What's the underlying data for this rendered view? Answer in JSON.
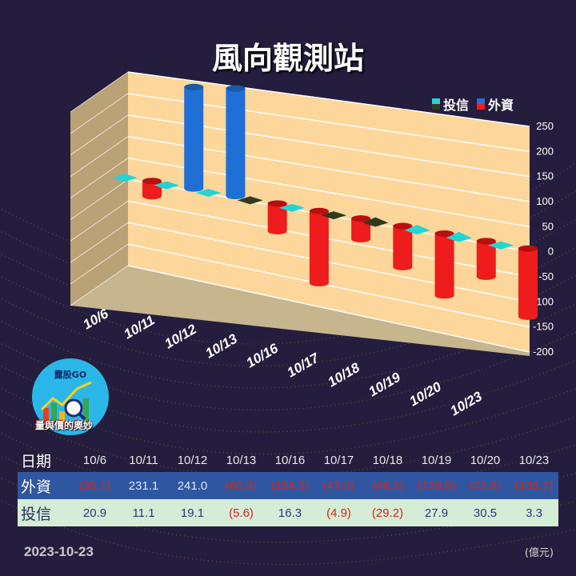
{
  "title": "風向觀測站",
  "legend": {
    "trust": "投信",
    "foreign": "外資"
  },
  "colors": {
    "trust": "#22d5d5",
    "foreign": "#1f6fd6",
    "negative": "#ee1c1c",
    "trust_negative": "#2e3b1f",
    "panel": "#fcd69a"
  },
  "logo": {
    "text": "露股GO",
    "subtitle": "量與價的奧妙"
  },
  "table": {
    "date_header": "日期",
    "foreign_header": "外資",
    "trust_header": "投信",
    "dates": [
      "10/6",
      "10/11",
      "10/12",
      "10/13",
      "10/16",
      "10/17",
      "10/18",
      "10/19",
      "10/20",
      "10/23"
    ],
    "foreign_text": [
      "(35.1)",
      "231.1",
      "241.0",
      "(60.9)",
      "(156.3)",
      "(43.9)",
      "(86.2)",
      "(128.0)",
      "(72.6)",
      "(136.7)"
    ],
    "trust_text": [
      "20.9",
      "11.1",
      "19.1",
      "(5.6)",
      "16.3",
      "(4.9)",
      "(29.2)",
      "27.9",
      "30.5",
      "3.3"
    ]
  },
  "footer": {
    "date": "2023-10-23",
    "unit": "(億元)"
  },
  "chart_data": {
    "type": "bar",
    "categories": [
      "10/6",
      "10/11",
      "10/12",
      "10/13",
      "10/16",
      "10/17",
      "10/18",
      "10/19",
      "10/20",
      "10/23"
    ],
    "series": [
      {
        "name": "投信",
        "values": [
          20.9,
          11.1,
          19.1,
          -5.6,
          16.3,
          -4.9,
          -29.2,
          27.9,
          30.5,
          3.3
        ]
      },
      {
        "name": "外資",
        "values": [
          -35.1,
          231.1,
          241.0,
          -60.9,
          -156.3,
          -43.9,
          -86.2,
          -128.0,
          -72.6,
          -136.7
        ]
      }
    ],
    "ylim": [
      -200,
      250
    ],
    "yticks": [
      250,
      200,
      150,
      100,
      50,
      0,
      -50,
      -100,
      -150,
      -200
    ],
    "legend_position": "top-right",
    "style": "3d"
  }
}
